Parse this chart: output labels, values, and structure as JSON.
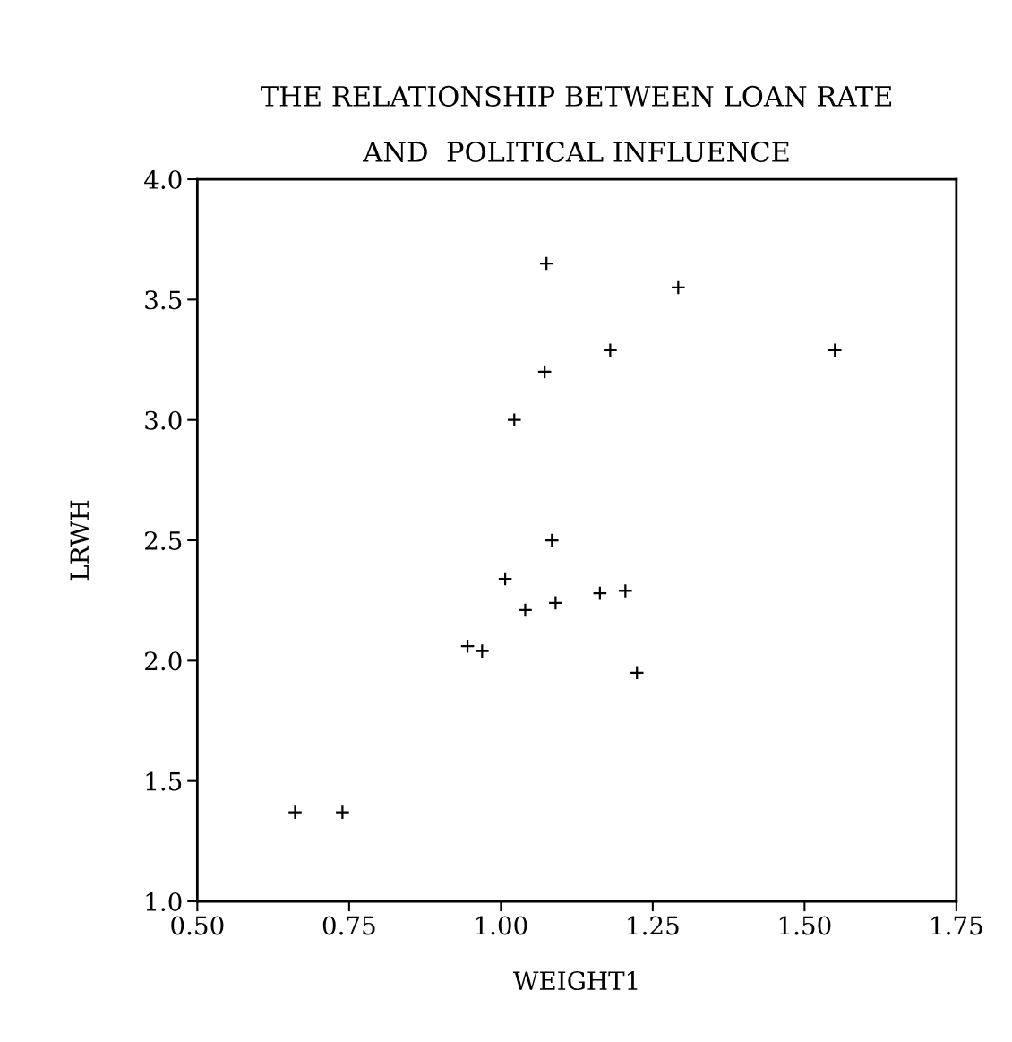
{
  "chart_data": {
    "type": "scatter",
    "title": "THE RELATIONSHIP BETWEEN LOAN RATE\nAND  POLITICAL INFLUENCE",
    "xlabel": "WEIGHT1",
    "ylabel": "LRWH",
    "x": [
      1.075,
      1.292,
      1.18,
      1.55,
      1.072,
      1.022,
      1.084,
      1.007,
      1.04,
      1.09,
      1.163,
      1.205,
      0.945,
      0.969,
      1.224,
      0.661,
      0.739
    ],
    "values": [
      3.65,
      3.55,
      3.29,
      3.29,
      3.2,
      3.0,
      2.5,
      2.34,
      2.21,
      2.24,
      2.28,
      2.29,
      2.06,
      2.04,
      1.95,
      1.37,
      1.37
    ],
    "color": "#000000",
    "marker": "cross",
    "xlim": [
      0.5,
      1.75
    ],
    "xticks": [
      {
        "value": 0.5,
        "label": "0.50"
      },
      {
        "value": 0.75,
        "label": "0.75"
      },
      {
        "value": 1.0,
        "label": "1.00"
      },
      {
        "value": 1.25,
        "label": "1.25"
      },
      {
        "value": 1.5,
        "label": "1.50"
      },
      {
        "value": 1.75,
        "label": "1.75"
      }
    ],
    "ylim": [
      1.0,
      4.0
    ],
    "yticks": [
      {
        "value": 1.0,
        "label": "1.0"
      },
      1.5,
      {
        "value": 2.0,
        "label": "2.0"
      },
      2.5,
      {
        "value": 3.0,
        "label": "3.0"
      },
      3.5,
      {
        "value": 4.0,
        "label": "4.0"
      }
    ],
    "grid": false,
    "legend": false
  }
}
